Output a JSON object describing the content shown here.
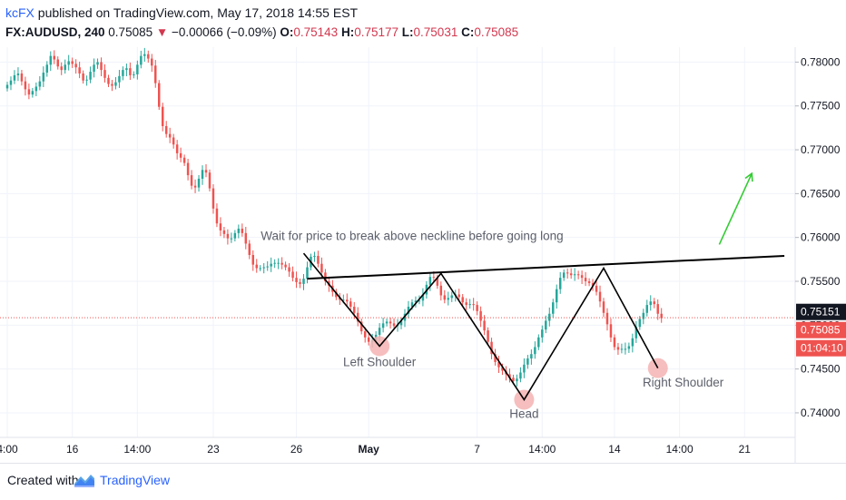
{
  "header": {
    "author": "kcFX",
    "published": " published on TradingView.com, May 17, 2018 14:55 EST",
    "symbol": "FX:AUDUSD, 240",
    "last": "0.75085",
    "arrow": "▼",
    "change": "−0.00066 (−0.09%)",
    "o_label": "O:",
    "o_value": "0.75143",
    "h_label": "H:",
    "h_value": "0.75177",
    "l_label": "L:",
    "l_value": "0.75031",
    "c_label": "C:",
    "c_value": "0.75085"
  },
  "footer": {
    "created_with": "Created with",
    "brand": "TradingView"
  },
  "colors": {
    "up": "#26a69a",
    "down": "#ef5350",
    "pattern": "#000000",
    "arrow": "#33cc33",
    "label": "#5d606b",
    "circle": "#f4b3b3",
    "price_line": "#ef5350",
    "bid_box": "#131722"
  },
  "chart_data": {
    "type": "candlestick",
    "title": "",
    "ylim": [
      0.7372,
      0.7817
    ],
    "yticks": [
      "0.78000",
      "0.77500",
      "0.77000",
      "0.76500",
      "0.76000",
      "0.75500",
      "0.75000",
      "0.74500",
      "0.74000"
    ],
    "ytick_values": [
      0.78,
      0.775,
      0.77,
      0.765,
      0.76,
      0.755,
      0.75,
      0.745,
      0.74
    ],
    "xticks": [
      {
        "label": "4:00",
        "bar": 0
      },
      {
        "label": "16",
        "bar": 18
      },
      {
        "label": "14:00",
        "bar": 36
      },
      {
        "label": "23",
        "bar": 57
      },
      {
        "label": "26",
        "bar": 80
      },
      {
        "label": "May",
        "bar": 100
      },
      {
        "label": "7",
        "bar": 130
      },
      {
        "label": "14:00",
        "bar": 148
      },
      {
        "label": "14",
        "bar": 168
      },
      {
        "label": "14:00",
        "bar": 186
      },
      {
        "label": "21",
        "bar": 204
      }
    ],
    "bar_count_total": 220,
    "price_labels": [
      {
        "text": "0.75151",
        "value": 0.75151,
        "style": "dark"
      },
      {
        "text": "0.75085",
        "value": 0.75085,
        "style": "red"
      },
      {
        "text": "01:04:10",
        "value": 0.7478,
        "style": "red"
      }
    ],
    "current_price": 0.75085,
    "closes": [
      0.7774,
      0.7779,
      0.7785,
      0.7787,
      0.7778,
      0.7769,
      0.7763,
      0.7767,
      0.7772,
      0.7778,
      0.7788,
      0.7797,
      0.7807,
      0.7803,
      0.7795,
      0.7791,
      0.7797,
      0.7801,
      0.7798,
      0.7794,
      0.7787,
      0.7779,
      0.778,
      0.7789,
      0.7797,
      0.78,
      0.7791,
      0.7782,
      0.7775,
      0.7773,
      0.7777,
      0.7784,
      0.7791,
      0.7793,
      0.7785,
      0.7786,
      0.7797,
      0.7807,
      0.7809,
      0.7804,
      0.7796,
      0.7776,
      0.7749,
      0.7727,
      0.7718,
      0.7714,
      0.7706,
      0.7696,
      0.7691,
      0.7685,
      0.7671,
      0.7659,
      0.7657,
      0.7667,
      0.7677,
      0.7674,
      0.7656,
      0.7633,
      0.7616,
      0.7608,
      0.7604,
      0.7599,
      0.7599,
      0.7605,
      0.761,
      0.7605,
      0.7593,
      0.758,
      0.7569,
      0.7565,
      0.7565,
      0.7566,
      0.7567,
      0.757,
      0.7571,
      0.7571,
      0.7569,
      0.7566,
      0.7561,
      0.7554,
      0.7549,
      0.7547,
      0.7553,
      0.7566,
      0.7578,
      0.7579,
      0.757,
      0.756,
      0.755,
      0.7545,
      0.7538,
      0.7532,
      0.7529,
      0.7529,
      0.7527,
      0.7521,
      0.7514,
      0.7504,
      0.7493,
      0.7486,
      0.7481,
      0.7483,
      0.7489,
      0.7497,
      0.7502,
      0.7504,
      0.7502,
      0.7499,
      0.75,
      0.7505,
      0.7513,
      0.7521,
      0.7526,
      0.7528,
      0.7528,
      0.7535,
      0.7546,
      0.7555,
      0.7554,
      0.7545,
      0.7534,
      0.7529,
      0.7531,
      0.7534,
      0.7535,
      0.7532,
      0.7526,
      0.7523,
      0.7524,
      0.7523,
      0.7516,
      0.7505,
      0.7494,
      0.7481,
      0.7467,
      0.7458,
      0.7452,
      0.7448,
      0.7444,
      0.744,
      0.7436,
      0.7439,
      0.7446,
      0.7455,
      0.7462,
      0.7467,
      0.7475,
      0.7486,
      0.7495,
      0.7505,
      0.7513,
      0.7526,
      0.7541,
      0.7554,
      0.756,
      0.7559,
      0.7557,
      0.7558,
      0.7557,
      0.7554,
      0.755,
      0.7548,
      0.7545,
      0.7538,
      0.7527,
      0.7514,
      0.7501,
      0.7486,
      0.7475,
      0.7472,
      0.7473,
      0.7473,
      0.7476,
      0.7485,
      0.7498,
      0.7507,
      0.7514,
      0.7523,
      0.7527,
      0.7524,
      0.7513,
      0.7508
    ],
    "annotations": [
      {
        "text": "Wait for price to break above neckline before going long",
        "bar": 112,
        "price": 0.7597
      },
      {
        "text": "Left Shoulder",
        "bar": 103,
        "price": 0.7453
      },
      {
        "text": "Head",
        "bar": 143,
        "price": 0.7394
      },
      {
        "text": "Right Shoulder",
        "bar": 187,
        "price": 0.743
      }
    ],
    "pattern_points": [
      {
        "bar": 82,
        "price": 0.7582
      },
      {
        "bar": 103,
        "price": 0.7476
      },
      {
        "bar": 120,
        "price": 0.7559
      },
      {
        "bar": 143,
        "price": 0.7415
      },
      {
        "bar": 165,
        "price": 0.7565
      },
      {
        "bar": 180,
        "price": 0.7451
      }
    ],
    "neckline": [
      {
        "bar": 83,
        "price": 0.7553
      },
      {
        "bar": 215,
        "price": 0.7579
      }
    ],
    "shoulder_circles": [
      {
        "bar": 103,
        "price": 0.7476
      },
      {
        "bar": 143,
        "price": 0.7415
      },
      {
        "bar": 180,
        "price": 0.7451
      }
    ],
    "up_arrow": [
      {
        "bar": 197,
        "price": 0.7592
      },
      {
        "bar": 206,
        "price": 0.7673
      }
    ]
  }
}
